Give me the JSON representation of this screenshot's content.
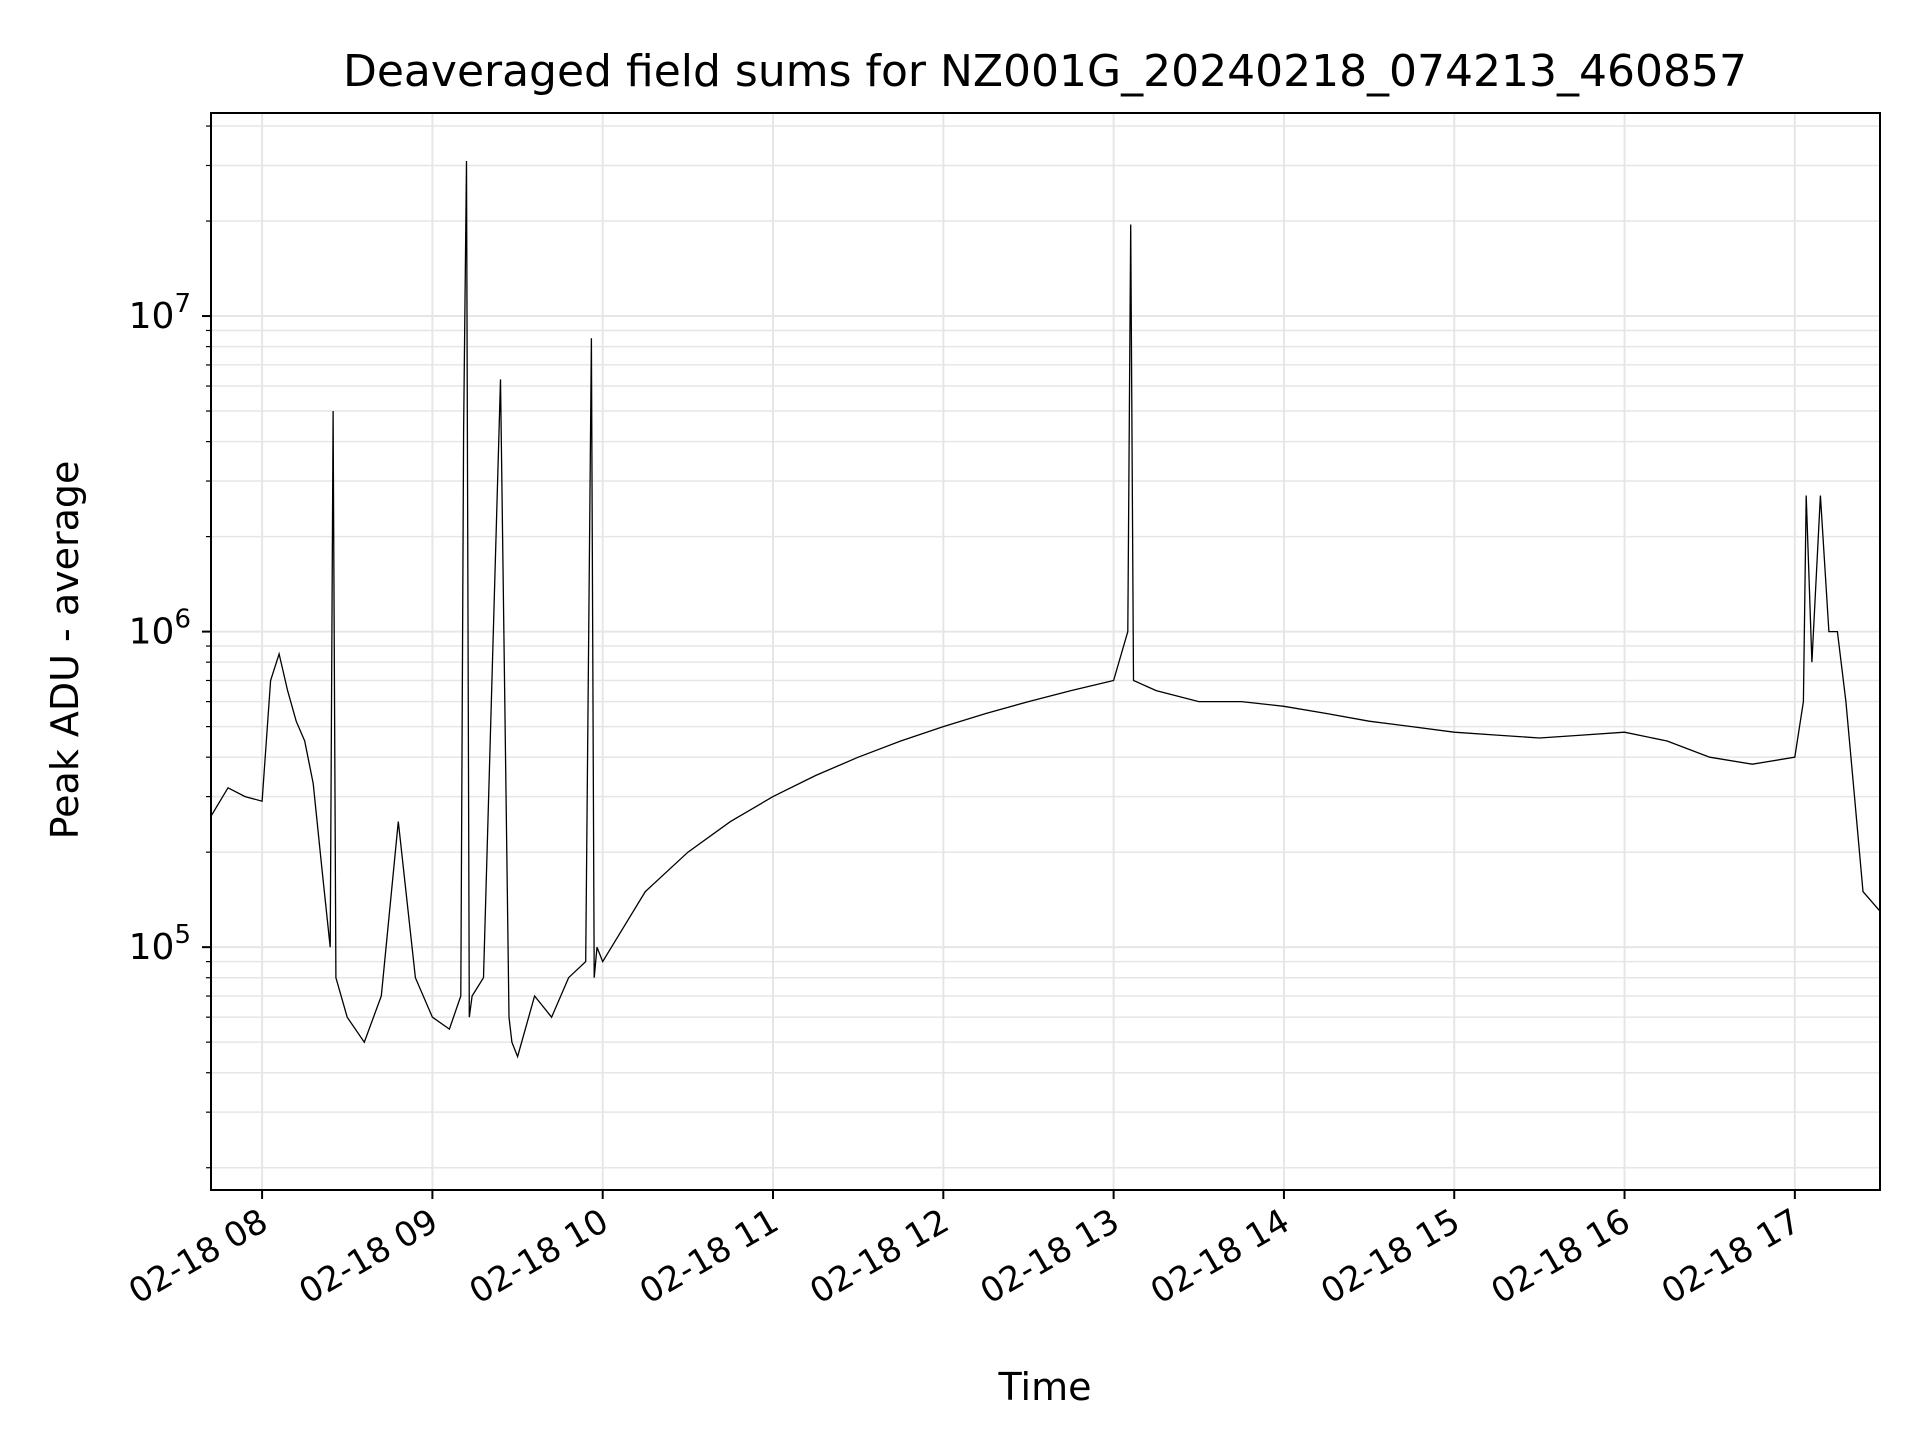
{
  "chart_data": {
    "type": "line",
    "title": "Deaveraged field sums for NZ001G_20240218_074213_460857",
    "xlabel": "Time",
    "ylabel": "Peak ADU - average",
    "y_scale": "log",
    "ylim": [
      17000,
      44000000
    ],
    "xlim": [
      "2024-02-18 07:42",
      "2024-02-18 17:30"
    ],
    "grid": true,
    "line_color": "#000000",
    "x_ticks": [
      {
        "t": "2024-02-18 08:00",
        "label": "02-18 08"
      },
      {
        "t": "2024-02-18 09:00",
        "label": "02-18 09"
      },
      {
        "t": "2024-02-18 10:00",
        "label": "02-18 10"
      },
      {
        "t": "2024-02-18 11:00",
        "label": "02-18 11"
      },
      {
        "t": "2024-02-18 12:00",
        "label": "02-18 12"
      },
      {
        "t": "2024-02-18 13:00",
        "label": "02-18 13"
      },
      {
        "t": "2024-02-18 14:00",
        "label": "02-18 14"
      },
      {
        "t": "2024-02-18 15:00",
        "label": "02-18 15"
      },
      {
        "t": "2024-02-18 16:00",
        "label": "02-18 16"
      },
      {
        "t": "2024-02-18 17:00",
        "label": "02-18 17"
      }
    ],
    "y_ticks": [
      {
        "value": 100000,
        "base": "10",
        "exp": "5"
      },
      {
        "value": 1000000,
        "base": "10",
        "exp": "6"
      },
      {
        "value": 10000000,
        "base": "10",
        "exp": "7"
      }
    ],
    "series": [
      {
        "x": [
          "2024-02-18 07:42",
          "2024-02-18 07:48",
          "2024-02-18 07:54",
          "2024-02-18 08:00",
          "2024-02-18 08:03",
          "2024-02-18 08:06",
          "2024-02-18 08:09",
          "2024-02-18 08:12",
          "2024-02-18 08:15",
          "2024-02-18 08:18",
          "2024-02-18 08:21",
          "2024-02-18 08:24",
          "2024-02-18 08:25",
          "2024-02-18 08:26",
          "2024-02-18 08:30",
          "2024-02-18 08:36",
          "2024-02-18 08:42",
          "2024-02-18 08:48",
          "2024-02-18 08:54",
          "2024-02-18 09:00",
          "2024-02-18 09:06",
          "2024-02-18 09:10",
          "2024-02-18 09:11",
          "2024-02-18 09:12",
          "2024-02-18 09:13",
          "2024-02-18 09:14",
          "2024-02-18 09:18",
          "2024-02-18 09:24",
          "2024-02-18 09:27",
          "2024-02-18 09:28",
          "2024-02-18 09:30",
          "2024-02-18 09:36",
          "2024-02-18 09:42",
          "2024-02-18 09:48",
          "2024-02-18 09:54",
          "2024-02-18 09:56",
          "2024-02-18 09:57",
          "2024-02-18 09:58",
          "2024-02-18 10:00",
          "2024-02-18 10:15",
          "2024-02-18 10:30",
          "2024-02-18 10:45",
          "2024-02-18 11:00",
          "2024-02-18 11:15",
          "2024-02-18 11:30",
          "2024-02-18 11:45",
          "2024-02-18 12:00",
          "2024-02-18 12:15",
          "2024-02-18 12:30",
          "2024-02-18 12:45",
          "2024-02-18 13:00",
          "2024-02-18 13:05",
          "2024-02-18 13:06",
          "2024-02-18 13:07",
          "2024-02-18 13:15",
          "2024-02-18 13:30",
          "2024-02-18 13:45",
          "2024-02-18 14:00",
          "2024-02-18 14:15",
          "2024-02-18 14:30",
          "2024-02-18 14:45",
          "2024-02-18 15:00",
          "2024-02-18 15:15",
          "2024-02-18 15:30",
          "2024-02-18 15:45",
          "2024-02-18 16:00",
          "2024-02-18 16:15",
          "2024-02-18 16:30",
          "2024-02-18 16:45",
          "2024-02-18 17:00",
          "2024-02-18 17:03",
          "2024-02-18 17:04",
          "2024-02-18 17:06",
          "2024-02-18 17:09",
          "2024-02-18 17:12",
          "2024-02-18 17:15",
          "2024-02-18 17:18",
          "2024-02-18 17:21",
          "2024-02-18 17:24",
          "2024-02-18 17:30"
        ],
        "y": [
          260000,
          320000,
          300000,
          290000,
          700000,
          850000,
          650000,
          520000,
          450000,
          330000,
          180000,
          100000,
          5000000,
          80000,
          60000,
          50000,
          70000,
          250000,
          80000,
          60000,
          55000,
          70000,
          4300000,
          31000000,
          60000,
          70000,
          80000,
          6300000,
          60000,
          50000,
          45000,
          70000,
          60000,
          80000,
          90000,
          8500000,
          80000,
          100000,
          90000,
          150000,
          200000,
          250000,
          300000,
          350000,
          400000,
          450000,
          500000,
          550000,
          600000,
          650000,
          700000,
          1000000,
          19500000,
          700000,
          650000,
          600000,
          600000,
          580000,
          550000,
          520000,
          500000,
          480000,
          470000,
          460000,
          470000,
          480000,
          450000,
          400000,
          380000,
          400000,
          600000,
          2700000,
          800000,
          2700000,
          1000000,
          1000000,
          600000,
          300000,
          150000,
          130000
        ]
      }
    ]
  }
}
